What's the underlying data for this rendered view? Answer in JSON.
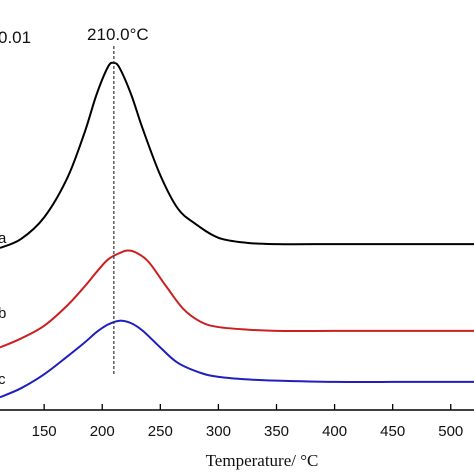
{
  "chart_data": {
    "type": "line",
    "xlabel": "Temperature/ °C",
    "xlim": [
      112,
      520
    ],
    "x_ticks": [
      "150",
      "200",
      "250",
      "300",
      "350",
      "400",
      "450",
      "500"
    ],
    "scale_label": "0.01",
    "reference_line": {
      "x": 210.0,
      "label": "210.0°C"
    },
    "series": [
      {
        "name": "a",
        "color": "#000000",
        "x": [
          112,
          130,
          150,
          170,
          185,
          195,
          205,
          210,
          215,
          225,
          235,
          250,
          265,
          280,
          300,
          325,
          350,
          400,
          450,
          520
        ],
        "y": [
          1.5,
          2.2,
          3.9,
          7.0,
          10.6,
          13.5,
          15.7,
          16.0,
          15.6,
          13.5,
          10.8,
          7.2,
          4.6,
          3.4,
          2.3,
          1.9,
          1.8,
          1.8,
          1.8,
          1.8
        ]
      },
      {
        "name": "b",
        "color": "#cc2020",
        "x": [
          112,
          130,
          150,
          170,
          185,
          195,
          205,
          215,
          222,
          230,
          240,
          255,
          270,
          285,
          300,
          325,
          350,
          400,
          450,
          520
        ],
        "y": [
          -6.3,
          -5.6,
          -4.6,
          -3.0,
          -1.5,
          -0.4,
          0.6,
          1.1,
          1.3,
          1.1,
          0.4,
          -1.5,
          -3.3,
          -4.3,
          -4.7,
          -4.9,
          -5.0,
          -5.0,
          -5.0,
          -5.0
        ]
      },
      {
        "name": "c",
        "color": "#1f1fbf",
        "x": [
          112,
          130,
          150,
          170,
          185,
          195,
          205,
          215,
          225,
          235,
          250,
          265,
          285,
          300,
          325,
          350,
          400,
          450,
          520
        ],
        "y": [
          -10.2,
          -9.5,
          -8.4,
          -7.0,
          -5.9,
          -5.1,
          -4.5,
          -4.2,
          -4.4,
          -5.0,
          -6.3,
          -7.5,
          -8.3,
          -8.6,
          -8.8,
          -8.9,
          -9.0,
          -9.0,
          -9.0
        ]
      }
    ]
  }
}
